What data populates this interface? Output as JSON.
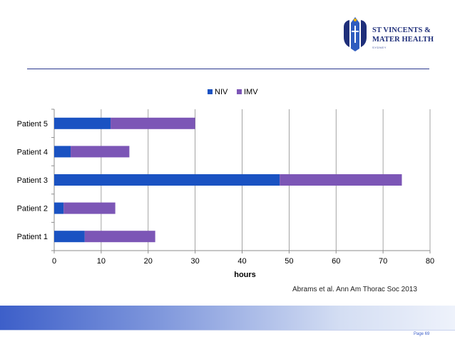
{
  "logo": {
    "line1": "ST VINCENTS &",
    "line2": "MATER HEALTH",
    "line3": "SYDNEY",
    "brand_color": "#1f2f7a"
  },
  "chart_data": {
    "type": "bar",
    "orientation": "horizontal",
    "stacked": true,
    "categories": [
      "Patient 1",
      "Patient 2",
      "Patient 3",
      "Patient 4",
      "Patient 5"
    ],
    "series": [
      {
        "name": "NIV",
        "color": "#1a52c2",
        "values": [
          6.5,
          2,
          48,
          3.5,
          12
        ]
      },
      {
        "name": "IMV",
        "color": "#7c56b6",
        "values": [
          15,
          11,
          26,
          12.5,
          18
        ]
      }
    ],
    "xlabel": "hours",
    "ylabel": "",
    "xlim": [
      0,
      80
    ],
    "xticks": [
      0,
      10,
      20,
      30,
      40,
      50,
      60,
      70,
      80
    ],
    "grid": true,
    "legend_position": "top"
  },
  "citation": "Abrams et al. Ann Am Thorac Soc 2013",
  "page_label": "Page 69",
  "footer": {
    "accent_color": "#3d5fc9"
  }
}
